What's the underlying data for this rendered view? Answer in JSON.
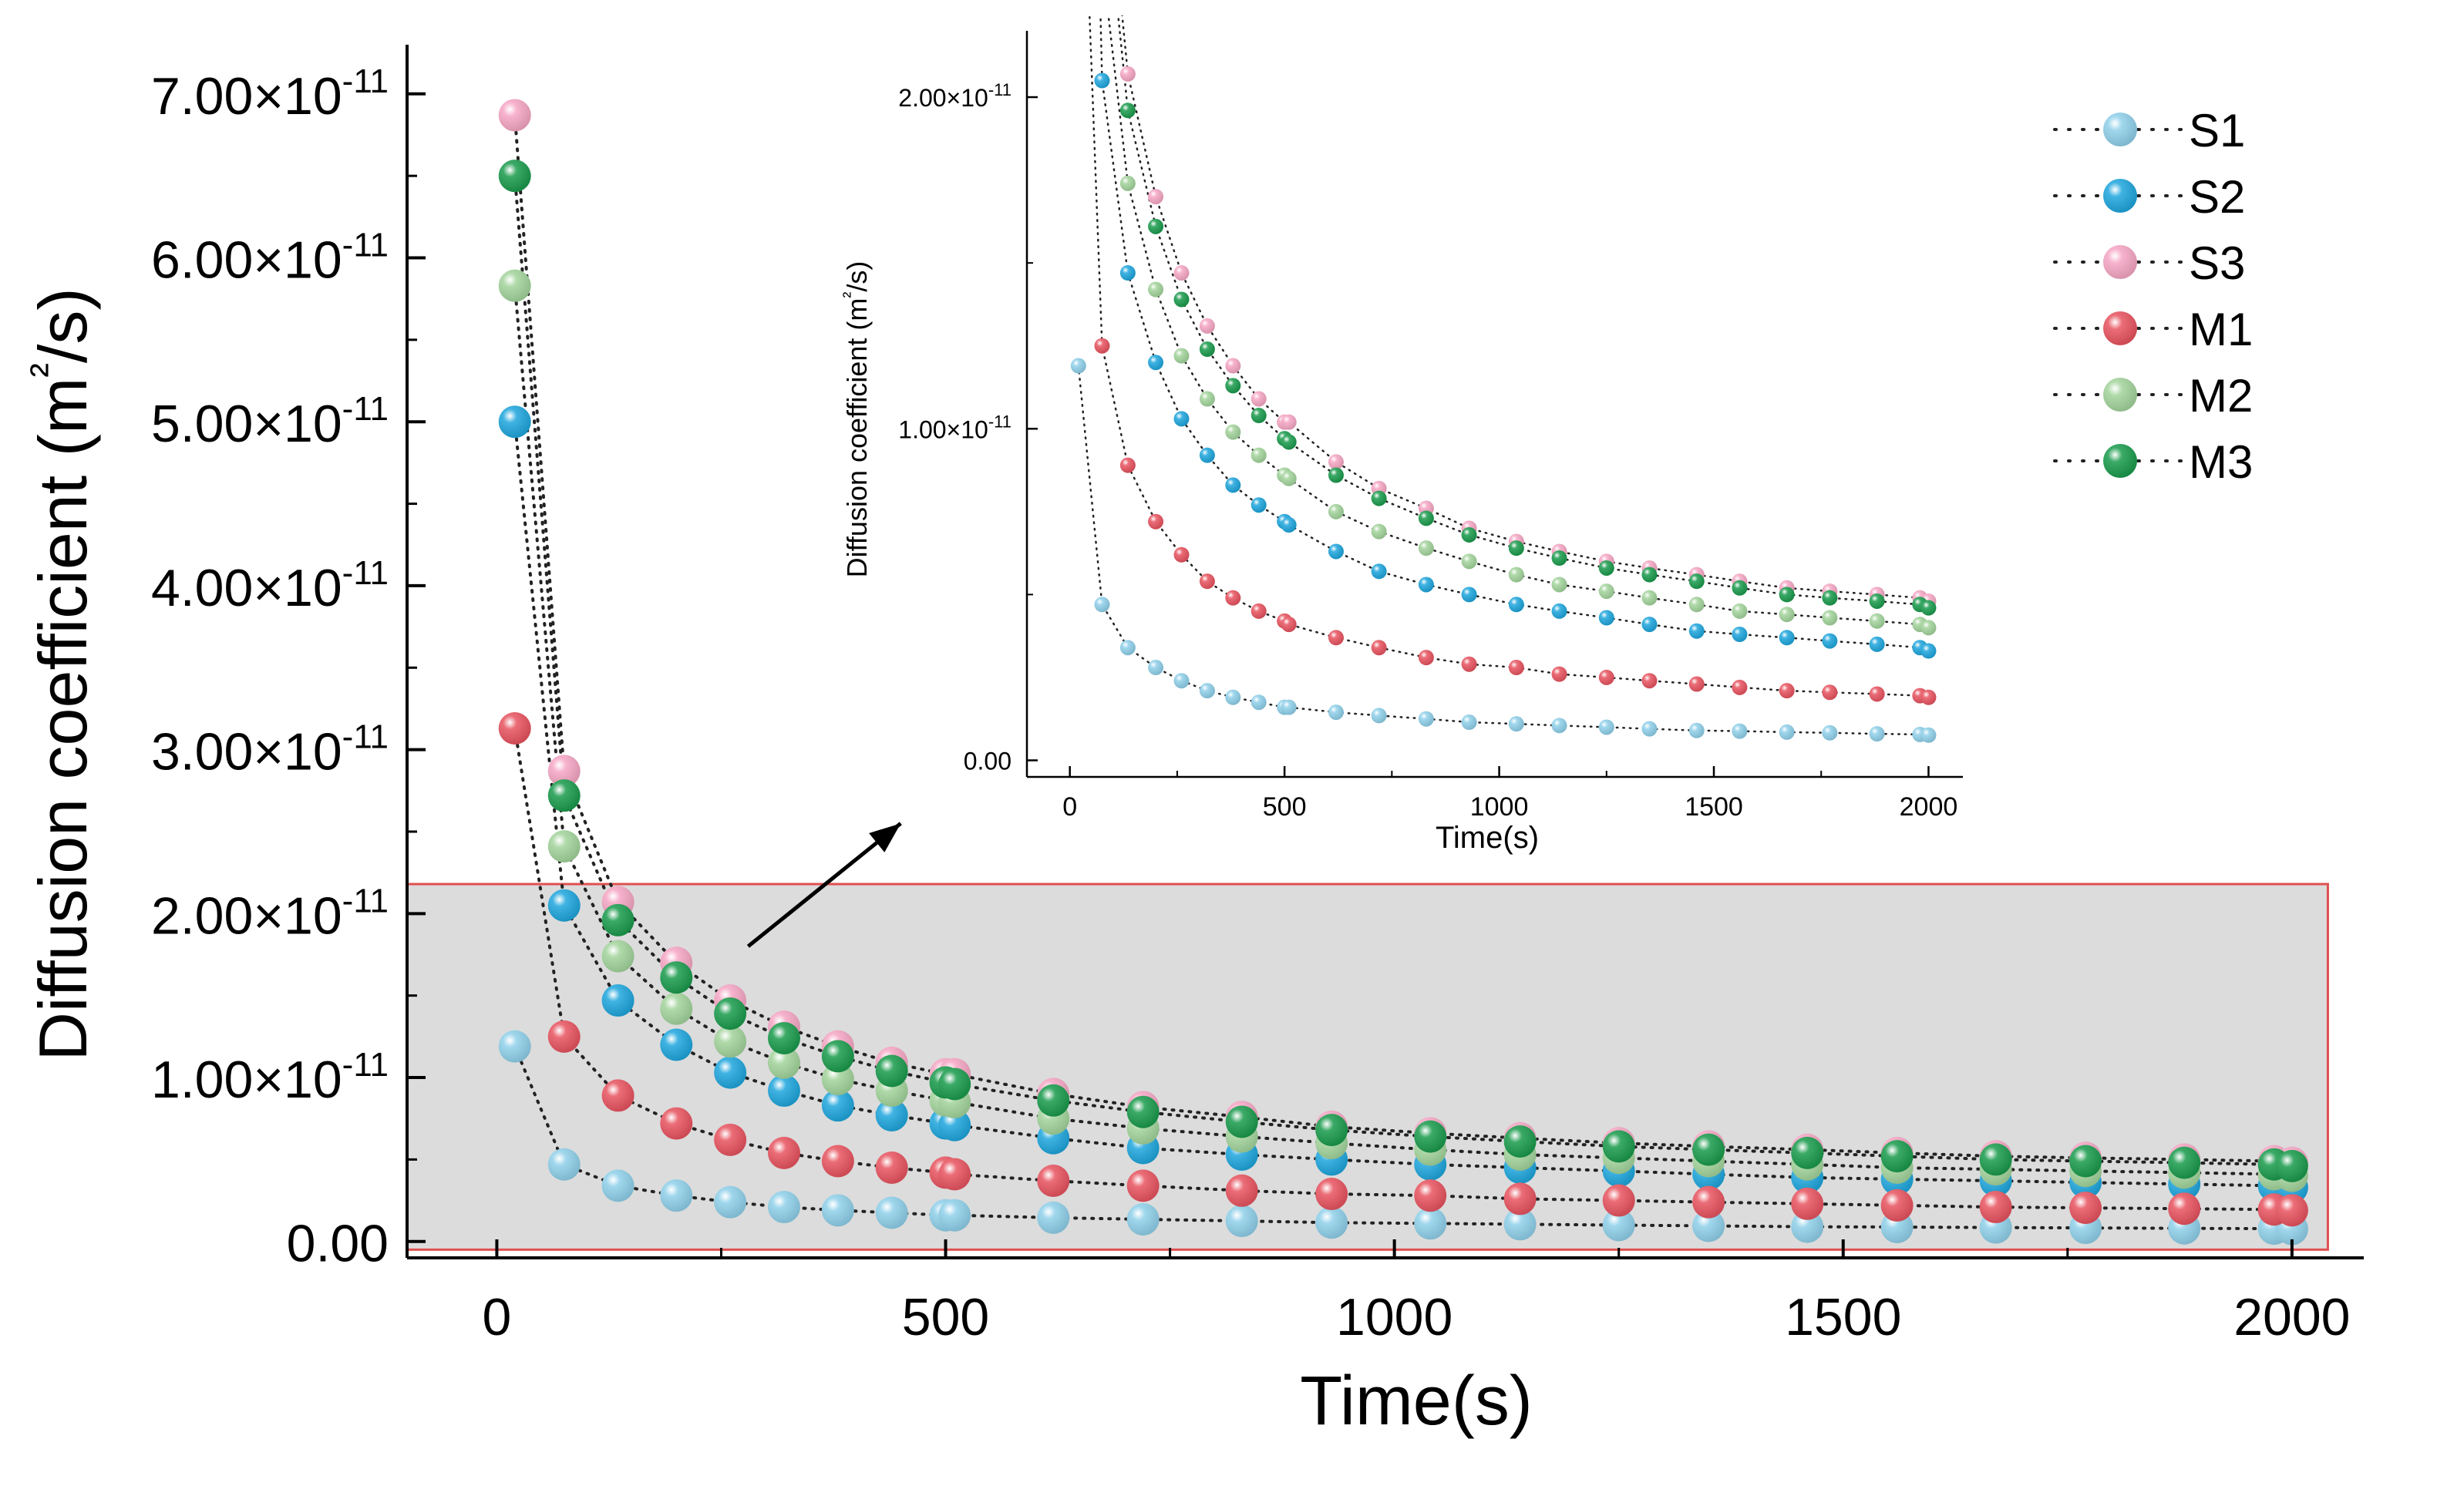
{
  "chart_data": [
    {
      "type": "scatter",
      "panel": "main",
      "xlabel": "Time(s)",
      "ylabel": "Diffusion coefficient",
      "ylabel_unit": "(m²/s)",
      "xlim": [
        -100,
        2080
      ],
      "ylim": [
        -1e-12,
        7.3e-11
      ],
      "xticks": [
        0,
        500,
        1000,
        1500,
        2000
      ],
      "xtick_labels": [
        "0",
        "500",
        "1000",
        "1500",
        "2000"
      ],
      "yticks": [
        0,
        1e-11,
        2e-11,
        3e-11,
        4e-11,
        5e-11,
        6e-11,
        7e-11
      ],
      "ytick_labels": [
        {
          "mant": "0.00",
          "exp": ""
        },
        {
          "mant": "1.00×10",
          "exp": "-11"
        },
        {
          "mant": "2.00×10",
          "exp": "-11"
        },
        {
          "mant": "3.00×10",
          "exp": "-11"
        },
        {
          "mant": "4.00×10",
          "exp": "-11"
        },
        {
          "mant": "5.00×10",
          "exp": "-11"
        },
        {
          "mant": "6.00×10",
          "exp": "-11"
        },
        {
          "mant": "7.00×10",
          "exp": "-11"
        }
      ],
      "highlight_region": {
        "x": [
          -100,
          2040
        ],
        "y": [
          -5e-13,
          2.18e-11
        ],
        "fill": "#dcdcdc",
        "stroke": "#e05050"
      },
      "arrow": {
        "from": [
          280,
          1.8e-11
        ],
        "to": [
          450,
          2.55e-11
        ]
      }
    },
    {
      "type": "scatter",
      "panel": "inset",
      "xlabel": "Time(s)",
      "ylabel": "Diffusion coefficient (m²/s)",
      "xlim": [
        -100,
        2080
      ],
      "ylim": [
        -5e-13,
        2.2e-11
      ],
      "xticks": [
        0,
        500,
        1000,
        1500,
        2000
      ],
      "xtick_labels": [
        "0",
        "500",
        "1000",
        "1500",
        "2000"
      ],
      "yticks": [
        0,
        1e-11,
        2e-11
      ],
      "ytick_labels": [
        {
          "mant": "0.00",
          "exp": ""
        },
        {
          "mant": "1.00×10",
          "exp": "-11"
        },
        {
          "mant": "2.00×10",
          "exp": "-11"
        }
      ]
    }
  ],
  "series_data": {
    "x": [
      20,
      75,
      135,
      200,
      260,
      320,
      380,
      440,
      500,
      510,
      620,
      720,
      830,
      930,
      1040,
      1140,
      1250,
      1350,
      1460,
      1560,
      1670,
      1770,
      1880,
      1980,
      2000
    ],
    "series": [
      {
        "name": "S1",
        "color": "#8fd0ea",
        "values": [
          1.19,
          0.47,
          0.34,
          0.28,
          0.24,
          0.21,
          0.19,
          0.175,
          0.16,
          0.16,
          0.145,
          0.135,
          0.125,
          0.115,
          0.11,
          0.105,
          0.1,
          0.095,
          0.09,
          0.088,
          0.085,
          0.083,
          0.08,
          0.078,
          0.076
        ]
      },
      {
        "name": "S2",
        "color": "#1ea6dd",
        "values": [
          5.0,
          2.05,
          1.47,
          1.2,
          1.03,
          0.92,
          0.83,
          0.77,
          0.72,
          0.71,
          0.63,
          0.57,
          0.53,
          0.5,
          0.47,
          0.45,
          0.43,
          0.41,
          0.39,
          0.38,
          0.37,
          0.36,
          0.35,
          0.34,
          0.33
        ]
      },
      {
        "name": "S3",
        "color": "#f5a6c4",
        "values": [
          6.87,
          2.87,
          2.07,
          1.7,
          1.47,
          1.31,
          1.19,
          1.09,
          1.02,
          1.02,
          0.9,
          0.82,
          0.76,
          0.7,
          0.66,
          0.63,
          0.6,
          0.58,
          0.56,
          0.54,
          0.52,
          0.51,
          0.5,
          0.49,
          0.48
        ]
      },
      {
        "name": "M1",
        "color": "#e8535f",
        "values": [
          3.13,
          1.25,
          0.89,
          0.72,
          0.62,
          0.54,
          0.49,
          0.45,
          0.42,
          0.41,
          0.37,
          0.34,
          0.31,
          0.29,
          0.28,
          0.26,
          0.25,
          0.24,
          0.23,
          0.22,
          0.21,
          0.205,
          0.2,
          0.195,
          0.19
        ]
      },
      {
        "name": "M2",
        "color": "#a3d49c",
        "values": [
          5.83,
          2.41,
          1.74,
          1.42,
          1.22,
          1.09,
          0.99,
          0.92,
          0.86,
          0.85,
          0.75,
          0.69,
          0.64,
          0.6,
          0.56,
          0.53,
          0.51,
          0.49,
          0.47,
          0.45,
          0.44,
          0.43,
          0.42,
          0.41,
          0.4
        ]
      },
      {
        "name": "M3",
        "color": "#1a9b4c",
        "values": [
          6.5,
          2.72,
          1.96,
          1.61,
          1.39,
          1.24,
          1.13,
          1.04,
          0.97,
          0.96,
          0.86,
          0.79,
          0.73,
          0.68,
          0.64,
          0.61,
          0.58,
          0.56,
          0.54,
          0.52,
          0.5,
          0.49,
          0.48,
          0.47,
          0.46
        ]
      }
    ],
    "value_scale": 1e-11
  },
  "legend": {
    "position": "top-right",
    "items": [
      "S1",
      "S2",
      "S3",
      "M1",
      "M2",
      "M3"
    ]
  }
}
